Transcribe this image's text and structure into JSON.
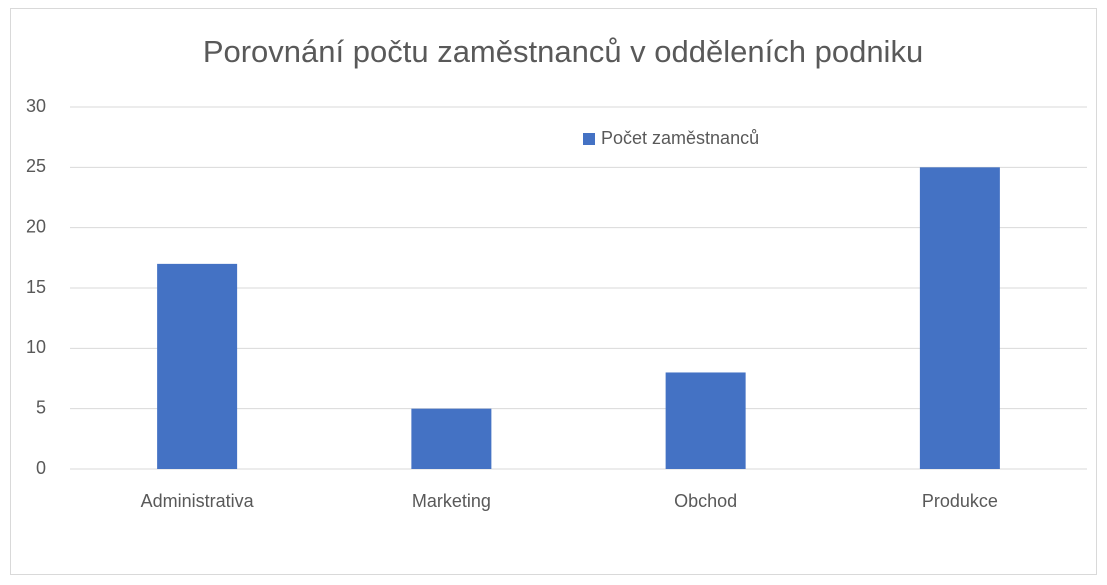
{
  "chart_data": {
    "type": "bar",
    "title": "Porovnání počtu zaměstnanců v odděleních podniku",
    "categories": [
      "Administrativa",
      "Marketing",
      "Obchod",
      "Produkce"
    ],
    "series": [
      {
        "name": "Počet zaměstnanců",
        "color": "#4472c4",
        "values": [
          17,
          5,
          8,
          25
        ]
      }
    ],
    "ylim": [
      0,
      30
    ],
    "yticks": [
      0,
      5,
      10,
      15,
      20,
      25,
      30
    ],
    "grid": true,
    "legend": "top"
  }
}
